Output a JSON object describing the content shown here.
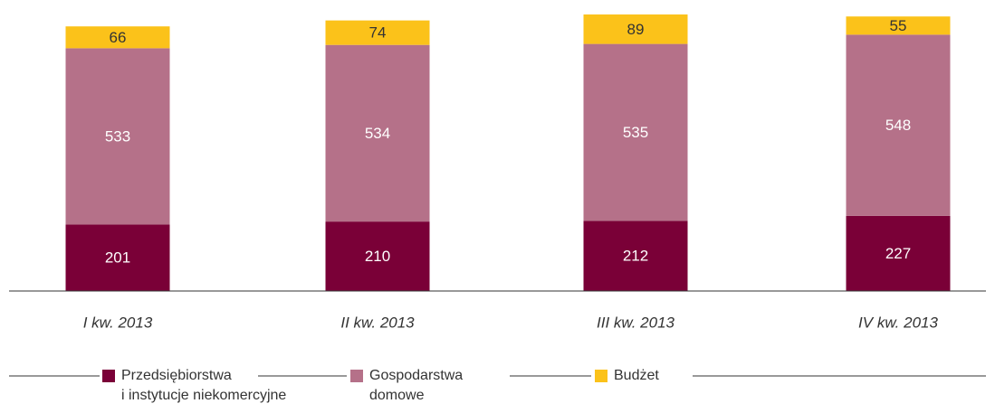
{
  "chart_data": {
    "type": "stacked_bar",
    "categories": [
      "I kw. 2013",
      "II kw. 2013",
      "III kw. 2013",
      "IV kw. 2013"
    ],
    "series": [
      {
        "name": "Przedsiębiorstwa\ni instytucje niekomercyjne",
        "color": "#7a0037",
        "values": [
          201,
          210,
          212,
          227
        ]
      },
      {
        "name": "Gospodarstwa\ndomowe",
        "color": "#b57189",
        "values": [
          533,
          534,
          535,
          548
        ]
      },
      {
        "name": "Budżet",
        "color": "#fbc21a",
        "values": [
          66,
          74,
          89,
          55
        ]
      }
    ]
  }
}
